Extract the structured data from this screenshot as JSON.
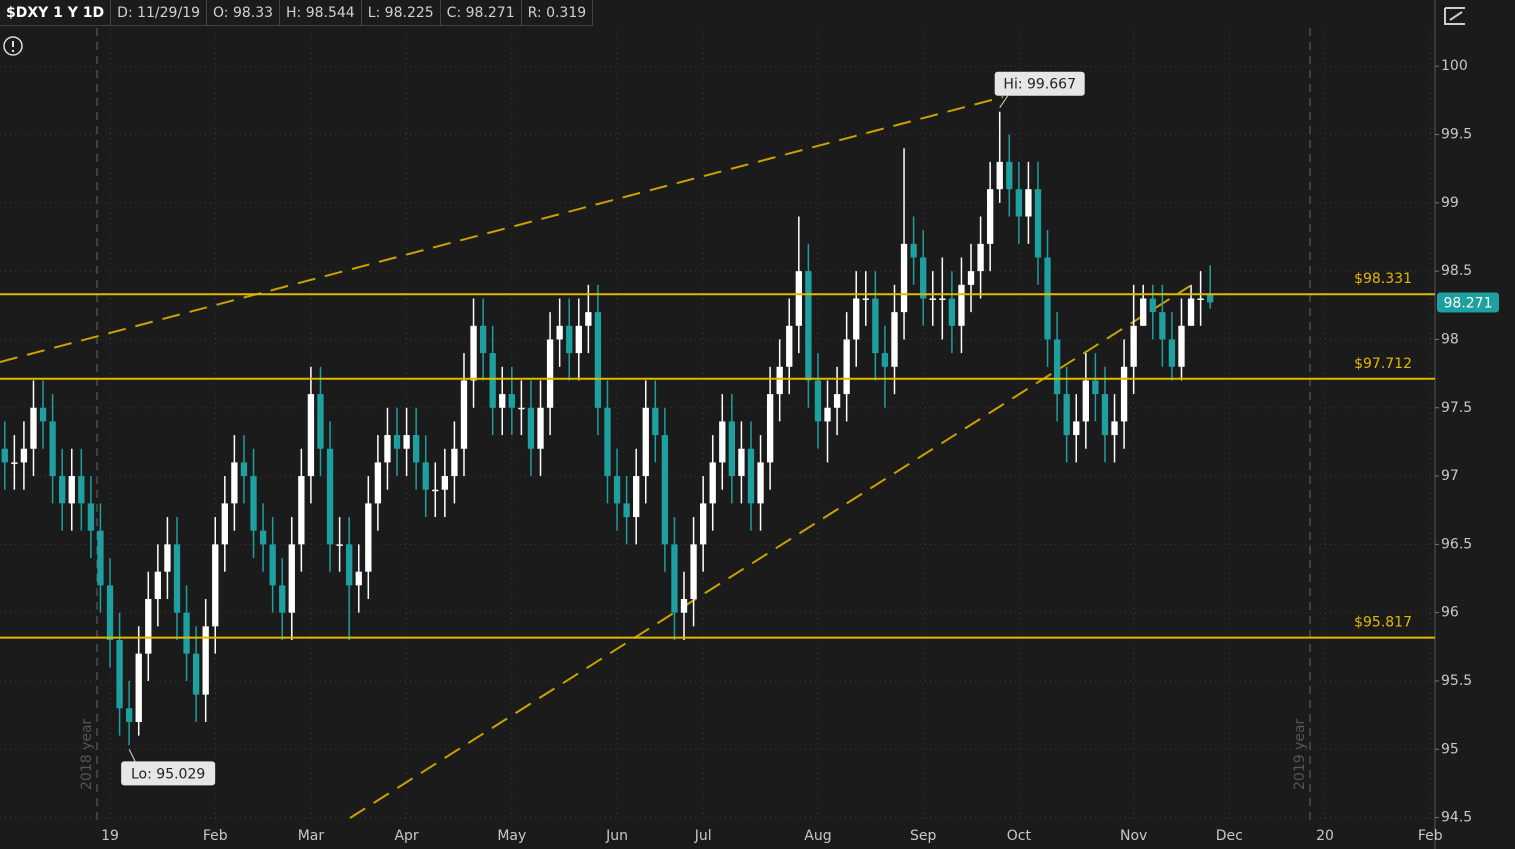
{
  "chart_data": {
    "type": "candlestick",
    "header": [
      "$DXY 1 Y 1D",
      "D: 11/29/19",
      "O: 98.33",
      "H: 98.544",
      "L: 98.225",
      "C: 98.271",
      "R: 0.319"
    ],
    "categories": [
      null,
      null,
      null,
      null,
      null,
      null,
      null,
      null,
      null,
      null,
      null,
      "19",
      null,
      null,
      null,
      null,
      null,
      null,
      null,
      null,
      null,
      null,
      "Feb",
      null,
      null,
      null,
      null,
      null,
      null,
      null,
      null,
      null,
      "Mar",
      null,
      null,
      null,
      null,
      null,
      null,
      null,
      null,
      null,
      "Apr",
      null,
      null,
      null,
      null,
      null,
      null,
      null,
      null,
      null,
      null,
      "May",
      null,
      null,
      null,
      null,
      null,
      null,
      null,
      null,
      null,
      null,
      "Jun",
      null,
      null,
      null,
      null,
      null,
      null,
      null,
      null,
      "Jul",
      null,
      null,
      null,
      null,
      null,
      null,
      null,
      null,
      null,
      null,
      null,
      "Aug",
      null,
      null,
      null,
      null,
      null,
      null,
      null,
      null,
      null,
      null,
      "Sep",
      null,
      null,
      null,
      null,
      null,
      null,
      null,
      null,
      null,
      "Oct",
      null,
      null,
      null,
      null,
      null,
      null,
      null,
      null,
      null,
      null,
      null,
      "Nov",
      null,
      null,
      null,
      null,
      null,
      null,
      null,
      null,
      null,
      "Dec",
      null,
      null,
      null,
      null,
      null,
      null,
      null,
      null,
      null,
      "20",
      null,
      null,
      null,
      null,
      null,
      null,
      null,
      null,
      null,
      null,
      "Feb"
    ],
    "open": [
      97.2,
      97.1,
      97.1,
      97.2,
      97.5,
      97.4,
      97.0,
      96.8,
      97.0,
      96.8,
      96.6,
      96.2,
      95.8,
      95.3,
      95.2,
      95.7,
      96.1,
      96.3,
      96.5,
      96.0,
      95.7,
      95.4,
      95.9,
      96.5,
      96.8,
      97.1,
      97.0,
      96.6,
      96.5,
      96.2,
      96.0,
      96.5,
      97.0,
      97.6,
      97.2,
      96.5,
      96.5,
      96.2,
      96.3,
      96.8,
      97.1,
      97.3,
      97.2,
      97.3,
      97.1,
      96.9,
      96.9,
      97.0,
      97.2,
      97.7,
      98.1,
      97.9,
      97.5,
      97.6,
      97.5,
      97.5,
      97.2,
      97.5,
      98.0,
      98.1,
      97.9,
      98.1,
      98.2,
      97.5,
      97.0,
      96.8,
      96.7,
      97.0,
      97.5,
      97.3,
      96.5,
      96.0,
      96.1,
      96.5,
      96.8,
      97.1,
      97.4,
      97.0,
      97.2,
      96.8,
      97.1,
      97.6,
      97.8,
      98.1,
      98.5,
      97.7,
      97.4,
      97.5,
      97.6,
      98.0,
      98.3,
      98.3,
      97.9,
      97.8,
      98.2,
      98.7,
      98.6,
      98.3,
      98.3,
      98.3,
      98.1,
      98.4,
      98.5,
      98.7,
      99.1,
      99.3,
      99.1,
      98.9,
      99.1,
      98.6,
      98.0,
      97.6,
      97.3,
      97.4,
      97.7,
      97.6,
      97.3,
      97.4,
      97.8,
      98.1,
      98.3,
      98.2,
      98.0,
      97.8,
      98.1,
      98.3,
      98.33,
      null,
      null,
      null,
      null,
      null,
      null,
      null,
      null,
      null,
      null,
      null,
      null,
      null,
      null,
      null,
      null,
      null,
      null,
      null,
      null,
      null,
      null,
      null
    ],
    "high": [
      97.4,
      97.3,
      97.4,
      97.7,
      97.7,
      97.6,
      97.2,
      97.2,
      97.2,
      97.0,
      96.8,
      96.4,
      96.0,
      95.5,
      95.9,
      96.3,
      96.5,
      96.7,
      96.7,
      96.2,
      95.9,
      96.1,
      96.7,
      97.0,
      97.3,
      97.3,
      97.2,
      96.8,
      96.7,
      96.4,
      96.7,
      97.2,
      97.8,
      97.8,
      97.4,
      96.7,
      96.7,
      96.5,
      97.0,
      97.3,
      97.5,
      97.5,
      97.5,
      97.5,
      97.3,
      97.1,
      97.2,
      97.4,
      97.9,
      98.3,
      98.3,
      98.1,
      97.8,
      97.8,
      97.7,
      97.7,
      97.7,
      98.2,
      98.3,
      98.3,
      98.3,
      98.4,
      98.4,
      97.7,
      97.2,
      97.0,
      97.2,
      97.7,
      97.7,
      97.5,
      96.7,
      96.3,
      96.7,
      97.0,
      97.3,
      97.6,
      97.6,
      97.4,
      97.4,
      97.3,
      97.8,
      98.0,
      98.3,
      98.9,
      98.7,
      97.9,
      97.7,
      97.8,
      98.2,
      98.5,
      98.5,
      98.5,
      98.1,
      98.4,
      99.4,
      98.9,
      98.8,
      98.5,
      98.6,
      98.5,
      98.6,
      98.7,
      98.9,
      99.3,
      99.667,
      99.5,
      99.3,
      99.3,
      99.3,
      98.8,
      98.2,
      97.8,
      97.6,
      97.9,
      97.9,
      97.8,
      97.6,
      98.0,
      98.4,
      98.4,
      98.4,
      98.4,
      98.2,
      98.3,
      98.4,
      98.5,
      98.544,
      null,
      null,
      null,
      null,
      null,
      null,
      null,
      null,
      null,
      null,
      null,
      null,
      null,
      null,
      null,
      null,
      null,
      null,
      null,
      null,
      null,
      null,
      null
    ],
    "low": [
      96.9,
      96.9,
      96.9,
      97.0,
      97.2,
      96.8,
      96.6,
      96.6,
      96.6,
      96.4,
      96.0,
      95.6,
      95.1,
      95.029,
      95.1,
      95.5,
      95.9,
      96.1,
      95.8,
      95.5,
      95.2,
      95.2,
      95.7,
      96.3,
      96.6,
      96.8,
      96.4,
      96.3,
      96.0,
      95.8,
      95.8,
      96.3,
      96.8,
      97.0,
      96.3,
      96.3,
      95.8,
      96.0,
      96.1,
      96.6,
      96.9,
      97.0,
      97.0,
      96.9,
      96.7,
      96.7,
      96.7,
      96.8,
      97.0,
      97.5,
      97.7,
      97.3,
      97.3,
      97.3,
      97.3,
      97.0,
      97.0,
      97.3,
      97.8,
      97.7,
      97.7,
      97.9,
      97.3,
      96.8,
      96.6,
      96.5,
      96.5,
      96.8,
      97.1,
      96.3,
      95.8,
      95.8,
      95.9,
      96.3,
      96.6,
      96.9,
      96.8,
      96.8,
      96.6,
      96.6,
      96.9,
      97.4,
      97.6,
      97.9,
      97.5,
      97.2,
      97.1,
      97.3,
      97.4,
      97.8,
      98.1,
      97.7,
      97.5,
      97.6,
      98.0,
      98.4,
      98.1,
      98.1,
      98.0,
      97.9,
      97.9,
      98.2,
      98.3,
      98.5,
      99.0,
      98.9,
      98.7,
      98.7,
      98.4,
      97.8,
      97.4,
      97.1,
      97.1,
      97.2,
      97.4,
      97.1,
      97.1,
      97.2,
      97.6,
      98.1,
      98.0,
      97.8,
      97.7,
      97.7,
      98.1,
      98.1,
      98.225,
      null,
      null,
      null,
      null,
      null,
      null,
      null,
      null,
      null,
      null,
      null,
      null,
      null,
      null,
      null,
      null,
      null,
      null,
      null,
      null,
      null,
      null,
      null
    ],
    "close": [
      97.1,
      97.1,
      97.2,
      97.5,
      97.4,
      97.0,
      96.8,
      97.0,
      96.8,
      96.6,
      96.2,
      95.8,
      95.3,
      95.2,
      95.7,
      96.1,
      96.3,
      96.5,
      96.0,
      95.7,
      95.4,
      95.9,
      96.5,
      96.8,
      97.1,
      97.0,
      96.6,
      96.5,
      96.2,
      96.0,
      96.5,
      97.0,
      97.6,
      97.2,
      96.5,
      96.5,
      96.2,
      96.3,
      96.8,
      97.1,
      97.3,
      97.2,
      97.3,
      97.1,
      96.9,
      96.9,
      97.0,
      97.2,
      97.7,
      98.1,
      97.9,
      97.5,
      97.6,
      97.5,
      97.5,
      97.2,
      97.5,
      98.0,
      98.1,
      97.9,
      98.1,
      98.2,
      97.5,
      97.0,
      96.8,
      96.7,
      97.0,
      97.5,
      97.3,
      96.5,
      96.0,
      96.1,
      96.5,
      96.8,
      97.1,
      97.4,
      97.0,
      97.2,
      96.8,
      97.1,
      97.6,
      97.8,
      98.1,
      98.5,
      97.7,
      97.4,
      97.5,
      97.6,
      98.0,
      98.3,
      98.3,
      97.9,
      97.8,
      98.2,
      98.7,
      98.6,
      98.3,
      98.3,
      98.3,
      98.1,
      98.4,
      98.5,
      98.7,
      99.1,
      99.3,
      99.1,
      98.9,
      99.1,
      98.6,
      98.0,
      97.6,
      97.3,
      97.4,
      97.7,
      97.6,
      97.3,
      97.4,
      97.8,
      98.1,
      98.3,
      98.2,
      98.0,
      97.8,
      98.1,
      98.3,
      98.3,
      98.271,
      null,
      null,
      null,
      null,
      null,
      null,
      null,
      null,
      null,
      null,
      null,
      null,
      null,
      null,
      null,
      null,
      null,
      null,
      null,
      null,
      null,
      null,
      null
    ],
    "ylim": [
      94.27,
      100.28
    ],
    "yticks": [
      94.5,
      95,
      95.5,
      96,
      96.5,
      97,
      97.5,
      98,
      98.5,
      99,
      99.5,
      100
    ],
    "levels": [
      {
        "value": 98.331,
        "label": "$98.331"
      },
      {
        "value": 97.712,
        "label": "$97.712"
      },
      {
        "value": 95.817,
        "label": "$95.817"
      }
    ],
    "annotations": {
      "high": "Hi: 99.667",
      "low": "Lo: 95.029"
    },
    "year_labels": [
      "2018 year",
      "2019 year"
    ],
    "colors": {
      "up": "#ffffff",
      "down": "#1e9fa0",
      "level": "#e0b900",
      "trend": "#c9a200"
    },
    "grid": true
  }
}
